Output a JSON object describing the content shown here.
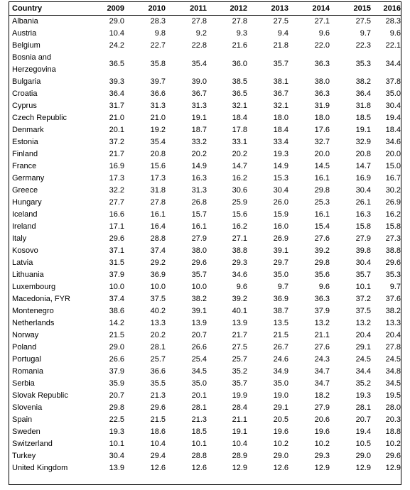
{
  "table": {
    "header": [
      "Country",
      "2009",
      "2010",
      "2011",
      "2012",
      "2013",
      "2014",
      "2015",
      "2016"
    ],
    "rows": [
      {
        "country": "Albania",
        "values": [
          "29.0",
          "28.3",
          "27.8",
          "27.8",
          "27.5",
          "27.1",
          "27.5",
          "28.3"
        ]
      },
      {
        "country": "Austria",
        "values": [
          "10.4",
          "9.8",
          "9.2",
          "9.3",
          "9.4",
          "9.6",
          "9.7",
          "9.6"
        ]
      },
      {
        "country": "Belgium",
        "values": [
          "24.2",
          "22.7",
          "22.8",
          "21.6",
          "21.8",
          "22.0",
          "22.3",
          "22.1"
        ]
      },
      {
        "country": "Bosnia and Herzegovina",
        "values": [
          "36.5",
          "35.8",
          "35.4",
          "36.0",
          "35.7",
          "36.3",
          "35.3",
          "34.4"
        ]
      },
      {
        "country": "Bulgaria",
        "values": [
          "39.3",
          "39.7",
          "39.0",
          "38.5",
          "38.1",
          "38.0",
          "38.2",
          "37.8"
        ]
      },
      {
        "country": "Croatia",
        "values": [
          "36.4",
          "36.6",
          "36.7",
          "36.5",
          "36.7",
          "36.3",
          "36.4",
          "35.0"
        ]
      },
      {
        "country": "Cyprus",
        "values": [
          "31.7",
          "31.3",
          "31.3",
          "32.1",
          "32.1",
          "31.9",
          "31.8",
          "30.4"
        ]
      },
      {
        "country": "Czech Republic",
        "values": [
          "21.0",
          "21.0",
          "19.1",
          "18.4",
          "18.0",
          "18.0",
          "18.5",
          "19.4"
        ]
      },
      {
        "country": "Denmark",
        "values": [
          "20.1",
          "19.2",
          "18.7",
          "17.8",
          "18.4",
          "17.6",
          "19.1",
          "18.4"
        ]
      },
      {
        "country": "Estonia",
        "values": [
          "37.2",
          "35.4",
          "33.2",
          "33.1",
          "33.4",
          "32.7",
          "32.9",
          "34.6"
        ]
      },
      {
        "country": "Finland",
        "values": [
          "21.7",
          "20.8",
          "20.2",
          "20.2",
          "19.3",
          "20.0",
          "20.8",
          "20.0"
        ]
      },
      {
        "country": "France",
        "values": [
          "16.9",
          "15.6",
          "14.9",
          "14.7",
          "14.9",
          "14.5",
          "14.7",
          "15.0"
        ]
      },
      {
        "country": "Germany",
        "values": [
          "17.3",
          "17.3",
          "16.3",
          "16.2",
          "15.3",
          "16.1",
          "16.9",
          "16.7"
        ]
      },
      {
        "country": "Greece",
        "values": [
          "32.2",
          "31.8",
          "31.3",
          "30.6",
          "30.4",
          "29.8",
          "30.4",
          "30.2"
        ]
      },
      {
        "country": "Hungary",
        "values": [
          "27.7",
          "27.8",
          "26.8",
          "25.9",
          "26.0",
          "25.3",
          "26.1",
          "26.9"
        ]
      },
      {
        "country": "Iceland",
        "values": [
          "16.6",
          "16.1",
          "15.7",
          "15.6",
          "15.9",
          "16.1",
          "16.3",
          "16.2"
        ]
      },
      {
        "country": "Ireland",
        "values": [
          "17.1",
          "16.4",
          "16.1",
          "16.2",
          "16.0",
          "15.4",
          "15.8",
          "15.8"
        ]
      },
      {
        "country": "Italy",
        "values": [
          "29.6",
          "28.8",
          "27.9",
          "27.1",
          "26.9",
          "27.6",
          "27.9",
          "27.3"
        ]
      },
      {
        "country": "Kosovo",
        "values": [
          "37.1",
          "37.4",
          "38.0",
          "38.8",
          "39.1",
          "39.2",
          "39.8",
          "38.8"
        ]
      },
      {
        "country": "Latvia",
        "values": [
          "31.5",
          "29.2",
          "29.6",
          "29.3",
          "29.7",
          "29.8",
          "30.4",
          "29.6"
        ]
      },
      {
        "country": "Lithuania",
        "values": [
          "37.9",
          "36.9",
          "35.7",
          "34.6",
          "35.0",
          "35.6",
          "35.7",
          "35.3"
        ]
      },
      {
        "country": "Luxembourg",
        "values": [
          "10.0",
          "10.0",
          "10.0",
          "9.6",
          "9.7",
          "9.6",
          "10.1",
          "9.7"
        ]
      },
      {
        "country": "Macedonia, FYR",
        "values": [
          "37.4",
          "37.5",
          "38.2",
          "39.2",
          "36.9",
          "36.3",
          "37.2",
          "37.6"
        ]
      },
      {
        "country": "Montenegro",
        "values": [
          "38.6",
          "40.2",
          "39.1",
          "40.1",
          "38.7",
          "37.9",
          "37.5",
          "38.2"
        ]
      },
      {
        "country": "Netherlands",
        "values": [
          "14.2",
          "13.3",
          "13.9",
          "13.9",
          "13.5",
          "13.2",
          "13.2",
          "13.3"
        ]
      },
      {
        "country": "Norway",
        "values": [
          "21.5",
          "20.2",
          "20.7",
          "21.7",
          "21.5",
          "21.1",
          "20.4",
          "20.4"
        ]
      },
      {
        "country": "Poland",
        "values": [
          "29.0",
          "28.1",
          "26.6",
          "27.5",
          "26.7",
          "27.6",
          "29.1",
          "27.8"
        ]
      },
      {
        "country": "Portugal",
        "values": [
          "26.6",
          "25.7",
          "25.4",
          "25.7",
          "24.6",
          "24.3",
          "24.5",
          "24.5"
        ]
      },
      {
        "country": "Romania",
        "values": [
          "37.9",
          "36.6",
          "34.5",
          "35.2",
          "34.9",
          "34.7",
          "34.4",
          "34.8"
        ]
      },
      {
        "country": "Serbia",
        "values": [
          "35.9",
          "35.5",
          "35.0",
          "35.7",
          "35.0",
          "34.7",
          "35.2",
          "34.5"
        ]
      },
      {
        "country": "Slovak Republic",
        "values": [
          "20.7",
          "21.3",
          "20.1",
          "19.9",
          "19.0",
          "18.2",
          "19.3",
          "19.5"
        ]
      },
      {
        "country": "Slovenia",
        "values": [
          "29.8",
          "29.6",
          "28.1",
          "28.4",
          "29.1",
          "27.9",
          "28.1",
          "28.0"
        ]
      },
      {
        "country": "Spain",
        "values": [
          "22.5",
          "21.5",
          "21.3",
          "21.1",
          "20.5",
          "20.6",
          "20.7",
          "20.3"
        ]
      },
      {
        "country": "Sweden",
        "values": [
          "19.3",
          "18.6",
          "18.5",
          "19.1",
          "19.6",
          "19.6",
          "19.4",
          "18.8"
        ]
      },
      {
        "country": "Switzerland",
        "values": [
          "10.1",
          "10.4",
          "10.1",
          "10.4",
          "10.2",
          "10.2",
          "10.5",
          "10.2"
        ]
      },
      {
        "country": "Turkey",
        "values": [
          "30.4",
          "29.4",
          "28.8",
          "28.9",
          "29.0",
          "29.3",
          "29.0",
          "29.6"
        ]
      },
      {
        "country": "United Kingdom",
        "values": [
          "13.9",
          "12.6",
          "12.6",
          "12.9",
          "12.6",
          "12.9",
          "12.9",
          "12.9"
        ]
      }
    ]
  }
}
